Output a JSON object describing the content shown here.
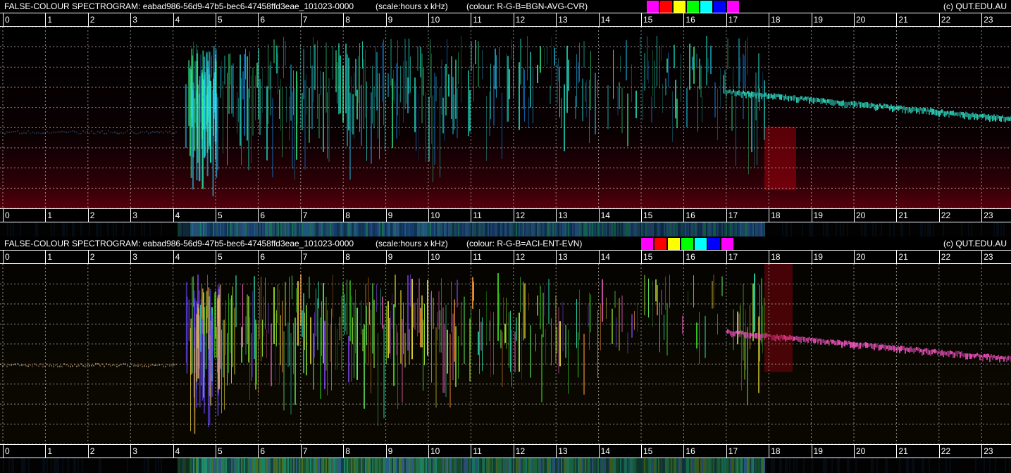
{
  "chart_data": [
    {
      "type": "heatmap",
      "title": "FALSE-COLOUR SPECTROGRAM: eabad986-56d9-47b5-bec6-47458ffd3eae_101023-0000",
      "scale_text": "(scale:hours x kHz)",
      "colour_text": "(colour: R-G-B=BGN-AVG-CVR)",
      "copyright": "(c) QUT.EDU.AU",
      "x_ticks": [
        "0",
        "1",
        "2",
        "3",
        "4",
        "5",
        "6",
        "7",
        "8",
        "9",
        "10",
        "11",
        "12",
        "13",
        "14",
        "15",
        "16",
        "17",
        "18",
        "19",
        "20",
        "21",
        "22",
        "23"
      ],
      "xlim": [
        0,
        24
      ],
      "legend_colors": [
        "#ff00ff",
        "#ff0000",
        "#ffff00",
        "#00ff00",
        "#00ffff",
        "#0000ff",
        "#ff00ff"
      ],
      "grid": true,
      "palette": "cyan"
    },
    {
      "type": "heatmap",
      "title": "FALSE-COLOUR SPECTROGRAM: eabad986-56d9-47b5-bec6-47458ffd3eae_101023-0000",
      "scale_text": "(scale:hours x kHz)",
      "colour_text": "(colour: R-G-B=ACI-ENT-EVN)",
      "copyright": "(c) QUT.EDU.AU",
      "x_ticks": [
        "0",
        "1",
        "2",
        "3",
        "4",
        "5",
        "6",
        "7",
        "8",
        "9",
        "10",
        "11",
        "12",
        "13",
        "14",
        "15",
        "16",
        "17",
        "18",
        "19",
        "20",
        "21",
        "22",
        "23"
      ],
      "xlim": [
        0,
        24
      ],
      "legend_colors": [
        "#ff00ff",
        "#ff0000",
        "#ffff00",
        "#00ff00",
        "#00ffff",
        "#0000ff",
        "#ff00ff"
      ],
      "grid": true,
      "palette": "multi"
    }
  ]
}
